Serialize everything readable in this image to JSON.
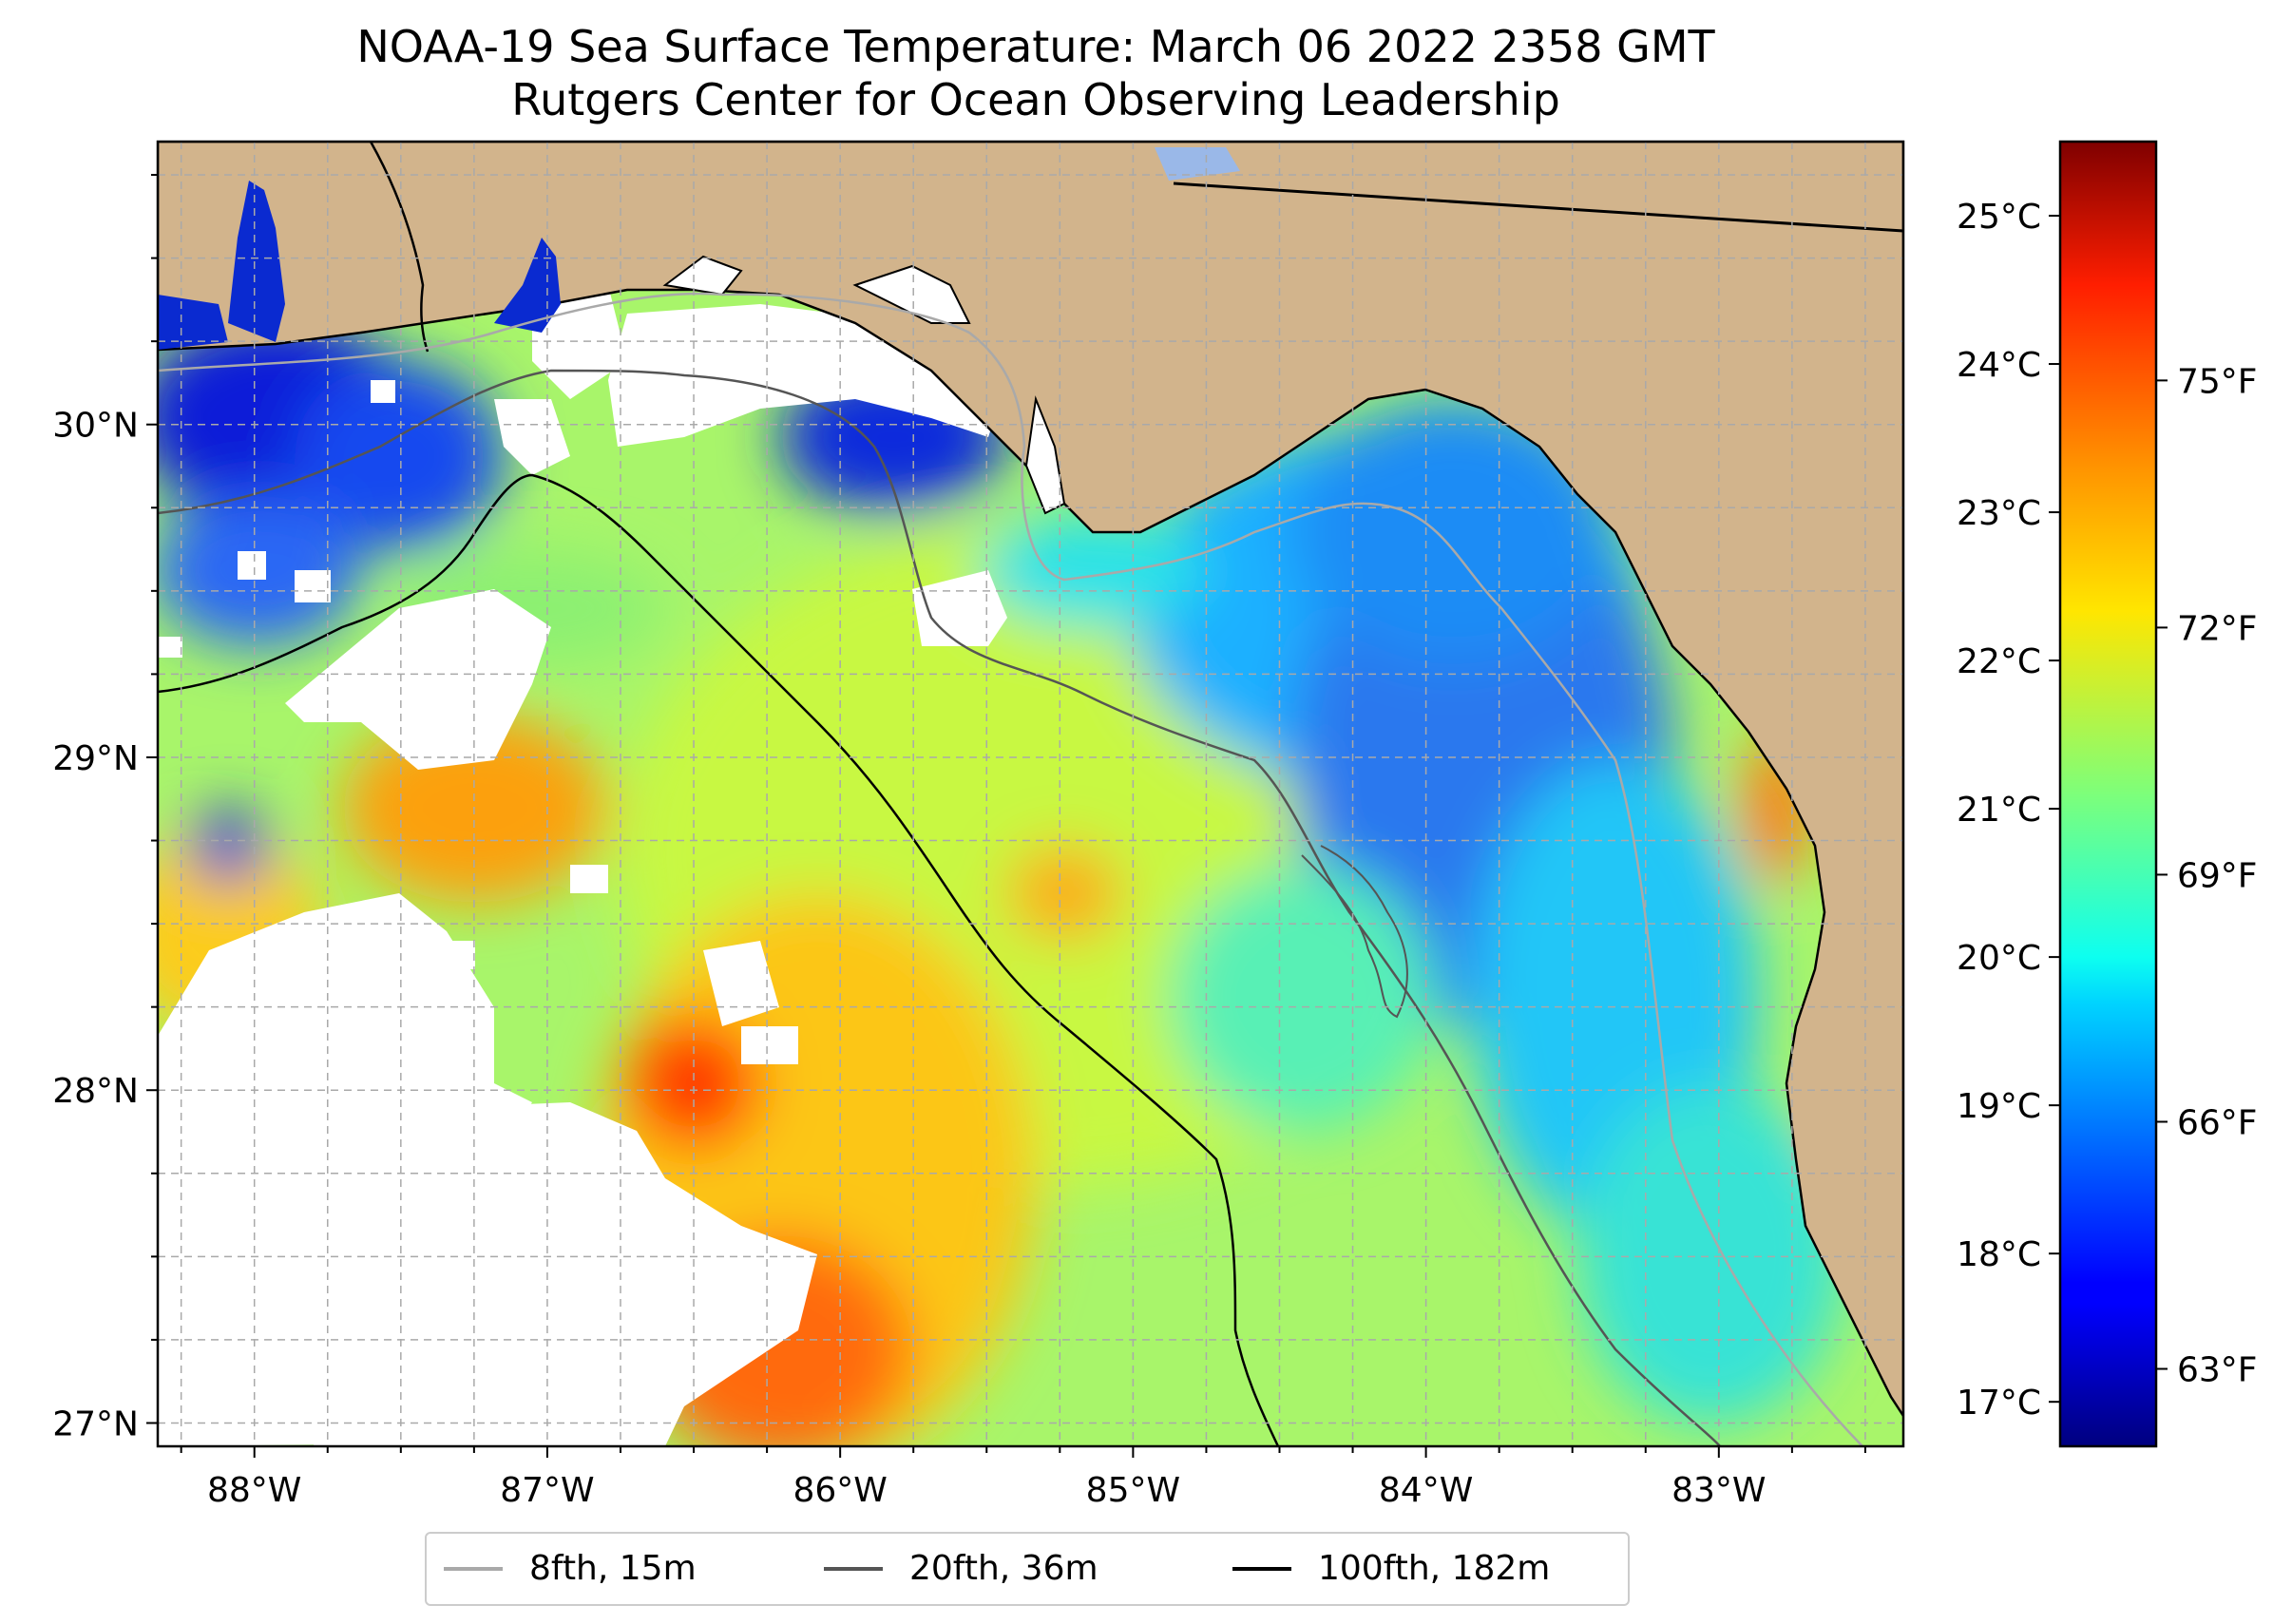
{
  "title": {
    "line1": "NOAA-19 Sea Surface Temperature: March 06 2022 2358 GMT",
    "line2": "Rutgers Center for Ocean Observing Leadership"
  },
  "map": {
    "lon_labels": [
      "88°W",
      "87°W",
      "86°W",
      "85°W",
      "84°W",
      "83°W"
    ],
    "lat_labels": [
      "30°N",
      "29°N",
      "28°N",
      "27°N"
    ],
    "extent": {
      "lon_min": -88.33,
      "lon_max": -82.37,
      "lat_min": 26.93,
      "lat_max": 30.85
    },
    "land_color": "#d2b48c",
    "nodata_color": "#ffffff",
    "grid": "dashed"
  },
  "colorbar": {
    "celsius_labels": [
      "17°C",
      "18°C",
      "19°C",
      "20°C",
      "21°C",
      "22°C",
      "23°C",
      "24°C",
      "25°C"
    ],
    "fahrenheit_labels": [
      "63°F",
      "66°F",
      "69°F",
      "72°F",
      "75°F"
    ],
    "colormap": "jet",
    "range_c": [
      16.7,
      25.5
    ]
  },
  "legend": {
    "items": [
      {
        "label": "8fth, 15m",
        "color": "#a9a9a9"
      },
      {
        "label": "20fth, 36m",
        "color": "#555555"
      },
      {
        "label": "100fth, 182m",
        "color": "#000000"
      }
    ]
  }
}
